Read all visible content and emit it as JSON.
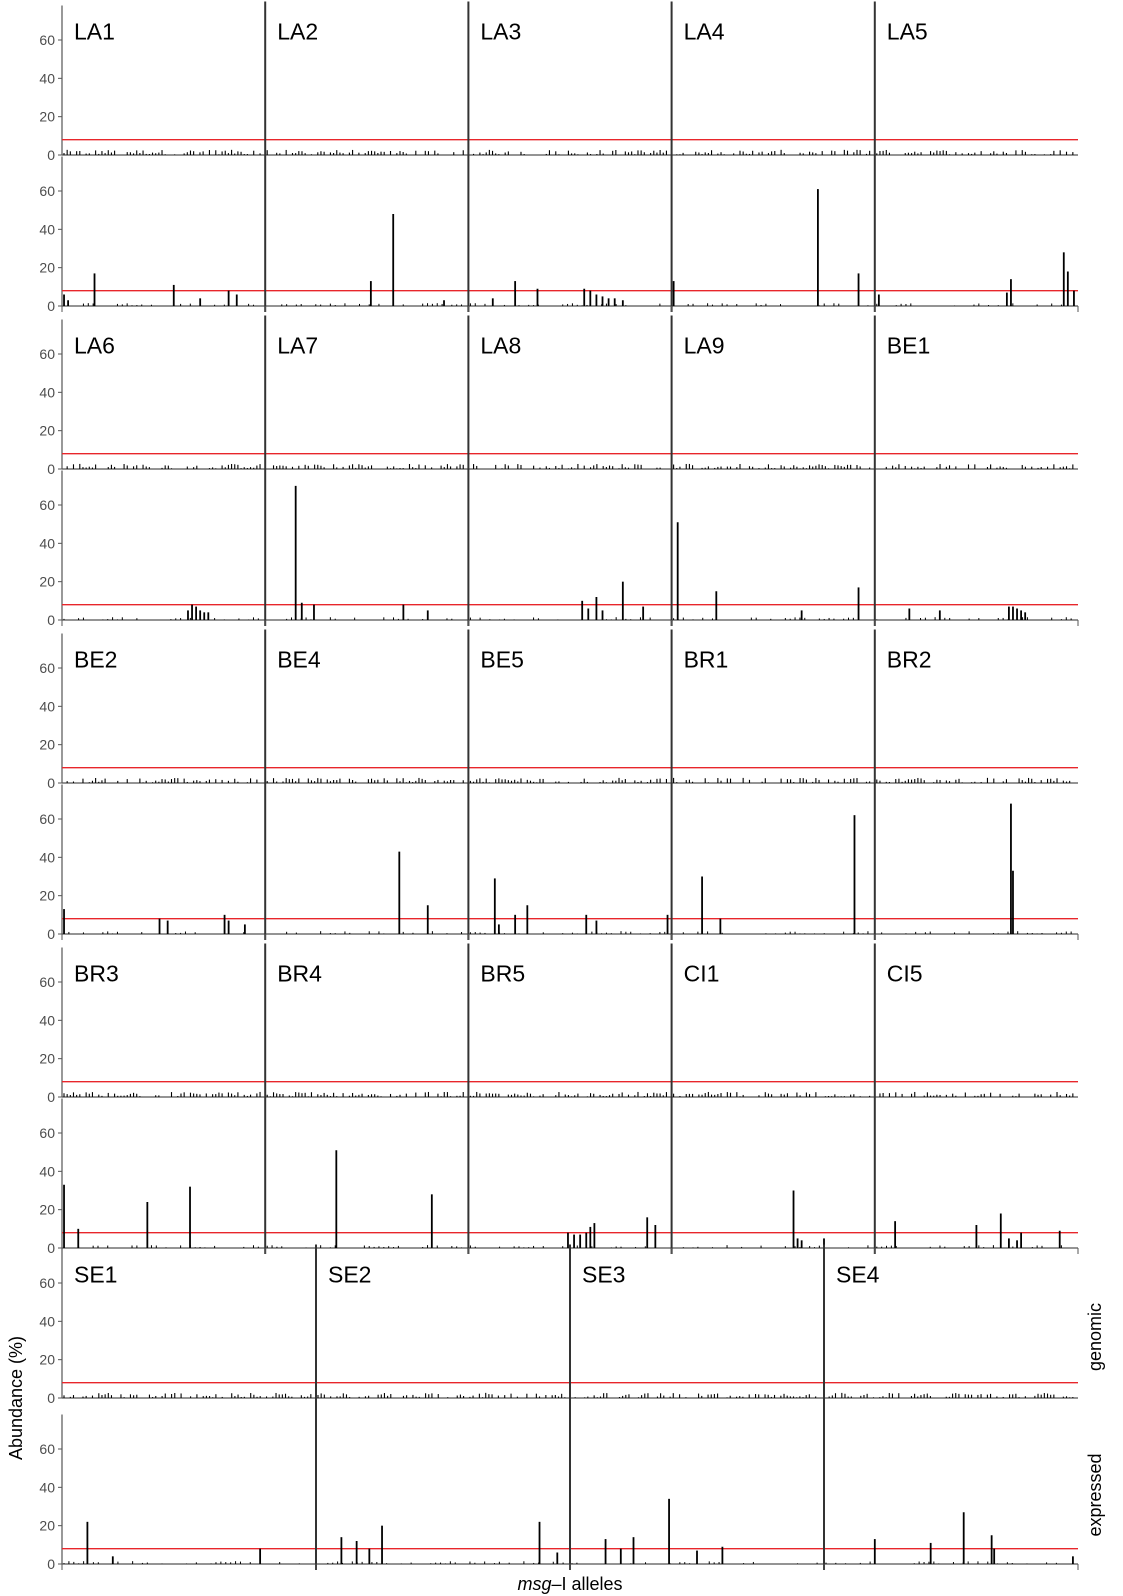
{
  "chart_data": {
    "type": "bar",
    "xlabel_em": "msg",
    "xlabel_rest": "–I alleles",
    "ylabel": "Abundance (%)",
    "yticks": [
      0,
      20,
      40,
      60
    ],
    "ylim": [
      0,
      78
    ],
    "threshold": 8,
    "facet_strip_labels": [
      "genomic",
      "expressed"
    ],
    "colors": {
      "bar": "#000000",
      "threshold": "#e8262b",
      "axis": "#555555",
      "divider": "#333333"
    },
    "rows": [
      [
        "LA1",
        "LA2",
        "LA3",
        "LA4",
        "LA5"
      ],
      [
        "LA6",
        "LA7",
        "LA8",
        "LA9",
        "BE1"
      ],
      [
        "BE2",
        "BE4",
        "BE5",
        "BR1",
        "BR2"
      ],
      [
        "BR3",
        "BR4",
        "BR5",
        "CI1",
        "CI5"
      ],
      [
        "SE1",
        "SE2",
        "SE3",
        "SE4"
      ]
    ],
    "expressed_peaks": {
      "LA1": [
        [
          0.01,
          6
        ],
        [
          0.03,
          3
        ],
        [
          0.16,
          17
        ],
        [
          0.55,
          11
        ],
        [
          0.68,
          4
        ],
        [
          0.82,
          8
        ],
        [
          0.86,
          6
        ]
      ],
      "LA2": [
        [
          0.52,
          13
        ],
        [
          0.63,
          48
        ],
        [
          0.88,
          3
        ]
      ],
      "LA3": [
        [
          0.12,
          4
        ],
        [
          0.23,
          13
        ],
        [
          0.34,
          9
        ],
        [
          0.57,
          9
        ],
        [
          0.6,
          8
        ],
        [
          0.63,
          6
        ],
        [
          0.66,
          5
        ],
        [
          0.69,
          4
        ],
        [
          0.72,
          4
        ],
        [
          0.76,
          3
        ]
      ],
      "LA4": [
        [
          0.01,
          13
        ],
        [
          0.72,
          61
        ],
        [
          0.92,
          17
        ]
      ],
      "LA5": [
        [
          0.02,
          6
        ],
        [
          0.65,
          7
        ],
        [
          0.67,
          14
        ],
        [
          0.93,
          28
        ],
        [
          0.95,
          18
        ],
        [
          0.98,
          8
        ]
      ],
      "LA6": [
        [
          0.62,
          5
        ],
        [
          0.64,
          8
        ],
        [
          0.66,
          7
        ],
        [
          0.68,
          5
        ],
        [
          0.7,
          4
        ],
        [
          0.72,
          4
        ]
      ],
      "LA7": [
        [
          0.15,
          70
        ],
        [
          0.18,
          9
        ],
        [
          0.24,
          8
        ],
        [
          0.68,
          8
        ],
        [
          0.8,
          5
        ]
      ],
      "LA8": [
        [
          0.56,
          10
        ],
        [
          0.59,
          6
        ],
        [
          0.63,
          12
        ],
        [
          0.66,
          5
        ],
        [
          0.76,
          20
        ],
        [
          0.86,
          7
        ]
      ],
      "LA9": [
        [
          0.03,
          51
        ],
        [
          0.22,
          15
        ],
        [
          0.64,
          5
        ],
        [
          0.92,
          17
        ]
      ],
      "BE1": [
        [
          0.17,
          6
        ],
        [
          0.32,
          5
        ],
        [
          0.66,
          7
        ],
        [
          0.68,
          7
        ],
        [
          0.7,
          6
        ],
        [
          0.72,
          5
        ],
        [
          0.74,
          4
        ]
      ],
      "BE2": [
        [
          0.01,
          13
        ],
        [
          0.48,
          8
        ],
        [
          0.52,
          7
        ],
        [
          0.8,
          10
        ],
        [
          0.82,
          7
        ],
        [
          0.9,
          5
        ]
      ],
      "BE4": [
        [
          0.66,
          43
        ],
        [
          0.8,
          15
        ]
      ],
      "BE5": [
        [
          0.13,
          29
        ],
        [
          0.15,
          5
        ],
        [
          0.23,
          10
        ],
        [
          0.29,
          15
        ],
        [
          0.58,
          10
        ],
        [
          0.63,
          7
        ],
        [
          0.98,
          10
        ]
      ],
      "BR1": [
        [
          0.15,
          30
        ],
        [
          0.24,
          8
        ],
        [
          0.9,
          62
        ]
      ],
      "BR2": [
        [
          0.67,
          68
        ],
        [
          0.68,
          33
        ]
      ],
      "BR3": [
        [
          0.01,
          33
        ],
        [
          0.08,
          10
        ],
        [
          0.42,
          24
        ],
        [
          0.63,
          32
        ]
      ],
      "BR4": [
        [
          0.35,
          51
        ],
        [
          0.82,
          28
        ]
      ],
      "BR5": [
        [
          0.49,
          8
        ],
        [
          0.52,
          7
        ],
        [
          0.55,
          7
        ],
        [
          0.58,
          8
        ],
        [
          0.6,
          11
        ],
        [
          0.62,
          13
        ],
        [
          0.88,
          16
        ],
        [
          0.92,
          12
        ]
      ],
      "CI1": [
        [
          0.6,
          30
        ],
        [
          0.62,
          5
        ],
        [
          0.64,
          4
        ],
        [
          0.75,
          5
        ]
      ],
      "CI5": [
        [
          0.1,
          14
        ],
        [
          0.5,
          12
        ],
        [
          0.62,
          18
        ],
        [
          0.66,
          5
        ],
        [
          0.7,
          4
        ],
        [
          0.72,
          8
        ],
        [
          0.91,
          9
        ]
      ],
      "SE1": [
        [
          0.1,
          22
        ],
        [
          0.2,
          4
        ],
        [
          0.78,
          8
        ]
      ],
      "SE2": [
        [
          0.1,
          14
        ],
        [
          0.16,
          12
        ],
        [
          0.21,
          8
        ],
        [
          0.26,
          20
        ],
        [
          0.88,
          22
        ],
        [
          0.95,
          6
        ]
      ],
      "SE3": [
        [
          0.14,
          13
        ],
        [
          0.2,
          8
        ],
        [
          0.25,
          14
        ],
        [
          0.39,
          34
        ],
        [
          0.5,
          7
        ],
        [
          0.6,
          9
        ]
      ],
      "SE4": [
        [
          0.2,
          13
        ],
        [
          0.42,
          11
        ],
        [
          0.55,
          27
        ],
        [
          0.66,
          15
        ],
        [
          0.67,
          8
        ],
        [
          0.98,
          4
        ]
      ]
    }
  }
}
